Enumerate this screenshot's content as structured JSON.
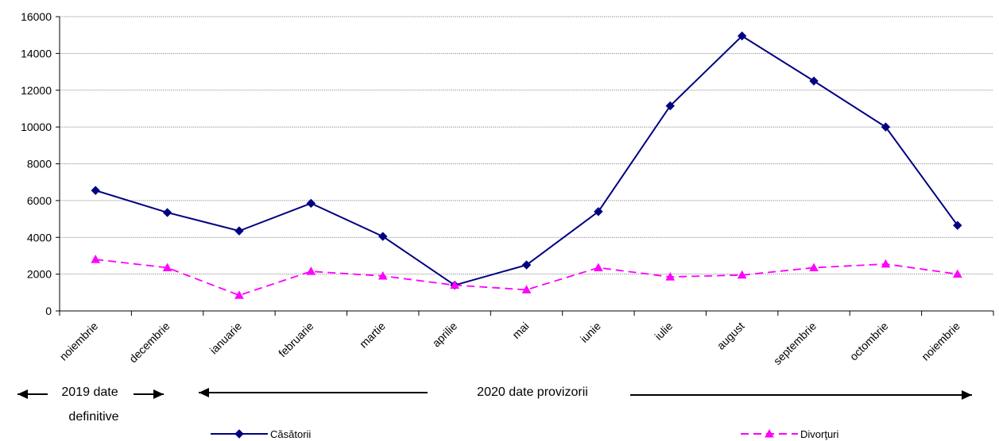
{
  "chart_data": {
    "type": "line",
    "categories": [
      "noiembrie",
      "decembrie",
      "ianuarie",
      "februarie",
      "martie",
      "aprilie",
      "mai",
      "iunie",
      "iulie",
      "august",
      "septembrie",
      "octombrie",
      "noiembrie"
    ],
    "series": [
      {
        "name": "Căsătorii",
        "color": "#000080",
        "marker": "diamond",
        "line_style": "solid",
        "values": [
          6550,
          5350,
          4350,
          5850,
          4050,
          1400,
          2500,
          5400,
          11150,
          14950,
          12500,
          10000,
          4650
        ]
      },
      {
        "name": "Divorţuri",
        "color": "#ff00ff",
        "marker": "triangle",
        "line_style": "dashed",
        "values": [
          2800,
          2350,
          850,
          2150,
          1900,
          1400,
          1150,
          2350,
          1850,
          1950,
          2350,
          2550,
          2000
        ]
      }
    ],
    "ylim": [
      0,
      16000
    ],
    "yticks": [
      0,
      2000,
      4000,
      6000,
      8000,
      10000,
      12000,
      14000,
      16000
    ],
    "grid": true,
    "legend_position": "bottom",
    "annotations": {
      "period_2019": [
        "2019 date",
        "definitive"
      ],
      "period_2020": "2020 date provizorii"
    }
  }
}
